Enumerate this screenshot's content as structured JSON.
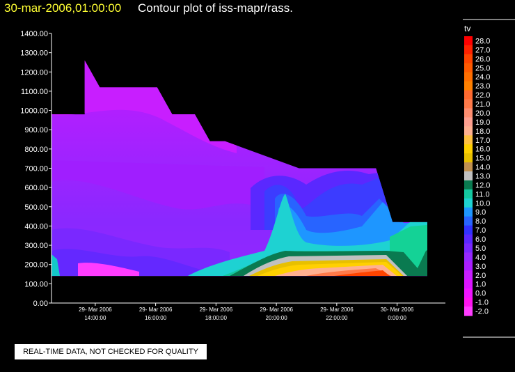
{
  "header": {
    "datetime": "30-mar-2006,01:00:00",
    "title": "Contour plot of iss-mapr/rass."
  },
  "footer": {
    "disclaimer": "REAL-TIME DATA, NOT CHECKED FOR QUALITY"
  },
  "colors": {
    "background": "#000000",
    "axis": "#ffffff",
    "datetime_text": "#ffff33"
  },
  "chart_data": {
    "type": "heatmap",
    "title": "Contour plot of iss-mapr/rass.",
    "xlabel": "",
    "ylabel": "",
    "x_ticks": [
      {
        "date": "29- Mar 2006",
        "time": "14:00:00"
      },
      {
        "date": "29- Mar 2006",
        "time": "16:00:00"
      },
      {
        "date": "29- Mar 2006",
        "time": "18:00:00"
      },
      {
        "date": "29- Mar 2006",
        "time": "20:00:00"
      },
      {
        "date": "29- Mar 2006",
        "time": "22:00:00"
      },
      {
        "date": "30- Mar 2006",
        "time": "0:00:00"
      }
    ],
    "xlim_hours": [
      12.55,
      25.6
    ],
    "y_ticks": [
      "0.00",
      "100.00",
      "200.00",
      "300.00",
      "400.00",
      "500.00",
      "600.00",
      "700.00",
      "800.00",
      "900.00",
      "1000.00",
      "1100.00",
      "1200.00",
      "1300.00",
      "1400.00"
    ],
    "ylim": [
      0,
      1400
    ],
    "coverage_top": {
      "hours": [
        12.55,
        13.65,
        13.65,
        14.15,
        16.05,
        16.55,
        17.3,
        17.8,
        18.3,
        20.75,
        22.8,
        23.3,
        23.85,
        25.0
      ],
      "heights": [
        980,
        980,
        1260,
        1120,
        1120,
        980,
        980,
        840,
        840,
        700,
        700,
        700,
        420,
        420
      ]
    },
    "coverage_bottom": 140,
    "colorbar": {
      "variable": "tv",
      "levels": [
        "28.0",
        "27.0",
        "26.0",
        "25.0",
        "24.0",
        "23.0",
        "22.0",
        "21.0",
        "20.0",
        "19.0",
        "18.0",
        "17.0",
        "16.0",
        "15.0",
        "14.0",
        "13.0",
        "12.0",
        "11.0",
        "10.0",
        "9.0",
        "8.0",
        "7.0",
        "6.0",
        "5.0",
        "4.0",
        "3.0",
        "2.0",
        "1.0",
        "0.0",
        "-1.0",
        "-2.0"
      ],
      "colors": [
        "#ff0000",
        "#ff2200",
        "#ff4400",
        "#ff5a00",
        "#ff6e00",
        "#ff8000",
        "#ff6a30",
        "#ff7a4a",
        "#ff8e70",
        "#ffa090",
        "#ffb090",
        "#ffc040",
        "#ffd000",
        "#e8c000",
        "#c09050",
        "#c0c0c0",
        "#0a7a50",
        "#14c8a0",
        "#1ed2d2",
        "#1e96ff",
        "#2864ff",
        "#3232ff",
        "#5a28ff",
        "#7828ff",
        "#9628ff",
        "#aa1eff",
        "#c81eff",
        "#dc14ff",
        "#f014ff",
        "#ff14f0",
        "#ff3cff"
      ]
    }
  }
}
